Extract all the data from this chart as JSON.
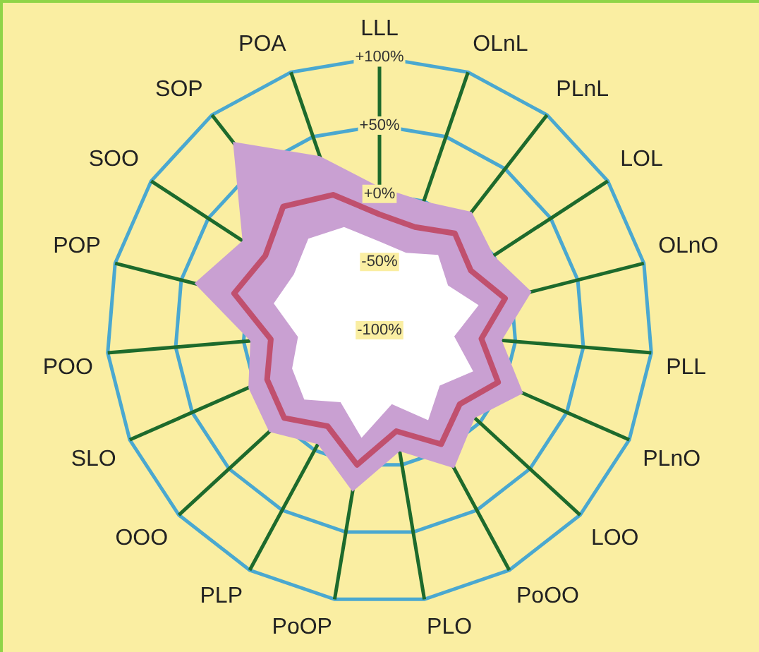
{
  "chart_data": {
    "type": "radar",
    "categories": [
      "LLL",
      "OLnL",
      "PLnL",
      "LOL",
      "OLnO",
      "PLL",
      "PLnO",
      "LOO",
      "PoOO",
      "PLO",
      "PoOP",
      "PLP",
      "OOO",
      "SLO",
      "POO",
      "POP",
      "SOO",
      "SOP",
      "POA"
    ],
    "series": [
      {
        "color": "#c9a0d2",
        "values": [
          5,
          0,
          10,
          0,
          15,
          -10,
          15,
          -5,
          15,
          -10,
          20,
          -5,
          10,
          5,
          -5,
          40,
          20,
          75,
          35
        ]
      },
      {
        "color": "#ffffff",
        "values": [
          -35,
          -40,
          -30,
          -40,
          -25,
          -45,
          -25,
          -40,
          -25,
          -45,
          -20,
          -40,
          -25,
          -30,
          -40,
          -20,
          -25,
          -15,
          -20
        ]
      },
      {
        "color": "#c0506e",
        "line_style": "solid",
        "values": [
          -15,
          -20,
          -10,
          -20,
          -5,
          -25,
          -5,
          -20,
          -5,
          -25,
          0,
          -20,
          -5,
          -10,
          -20,
          10,
          0,
          15,
          5
        ]
      }
    ],
    "ylim": [
      -100,
      100
    ],
    "yticks": [
      {
        "value": -100,
        "label": "-100%"
      },
      {
        "value": -50,
        "label": "-50%"
      },
      {
        "value": 0,
        "label": "+0%"
      },
      {
        "value": 50,
        "label": "+50%"
      },
      {
        "value": 100,
        "label": "+100%"
      }
    ],
    "grid": true,
    "legend": false
  }
}
